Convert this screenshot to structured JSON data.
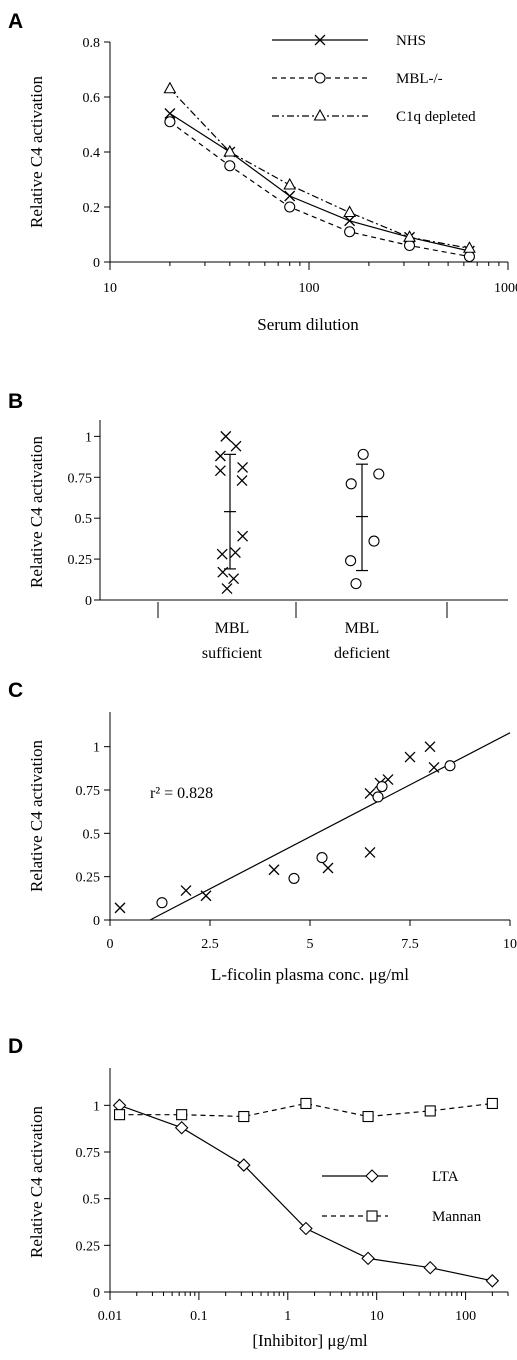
{
  "colors": {
    "ink": "#000000",
    "background": "#ffffff"
  },
  "chart_data": [
    {
      "panel": "A",
      "type": "line",
      "xscale": "log",
      "xlim": [
        10,
        1000
      ],
      "ylim": [
        0,
        0.8
      ],
      "xticks": [
        10,
        100,
        1000
      ],
      "yticks": [
        0,
        0.2,
        0.4,
        0.6,
        0.8
      ],
      "xtick_labels": [
        "10",
        "100",
        "1000"
      ],
      "ytick_labels": [
        "0",
        "0.2",
        "0.4",
        "0.6",
        "0.8"
      ],
      "xlabel": "Serum dilution",
      "ylabel": "Relative C4 activation",
      "legend_position": "top-right",
      "series": [
        {
          "name": "NHS",
          "line": "solid",
          "marker": "x",
          "x": [
            20,
            40,
            80,
            160,
            320,
            640
          ],
          "y": [
            0.54,
            0.4,
            0.24,
            0.15,
            0.09,
            0.04
          ]
        },
        {
          "name": "MBL-/-",
          "line": "dashed",
          "marker": "circle",
          "x": [
            20,
            40,
            80,
            160,
            320,
            640
          ],
          "y": [
            0.51,
            0.35,
            0.2,
            0.11,
            0.06,
            0.02
          ]
        },
        {
          "name": "C1q depleted",
          "line": "dashdot",
          "marker": "triangle",
          "x": [
            20,
            40,
            80,
            160,
            320,
            640
          ],
          "y": [
            0.63,
            0.4,
            0.28,
            0.18,
            0.09,
            0.05
          ]
        }
      ]
    },
    {
      "panel": "B",
      "type": "scatter",
      "ylim": [
        0,
        1.1
      ],
      "yticks": [
        0,
        0.25,
        0.5,
        0.75,
        1
      ],
      "ytick_labels": [
        "0",
        "0.25",
        "0.5",
        "0.75",
        "1"
      ],
      "ylabel": "Relative C4 activation",
      "groups": [
        {
          "label_lines": [
            "MBL",
            "sufficient"
          ],
          "marker": "x",
          "points": [
            {
              "dx": -0.35,
              "y": 1.0
            },
            {
              "dx": 0.5,
              "y": 0.94
            },
            {
              "dx": -0.8,
              "y": 0.88
            },
            {
              "dx": 1.05,
              "y": 0.81
            },
            {
              "dx": -0.8,
              "y": 0.79
            },
            {
              "dx": 1.0,
              "y": 0.73
            },
            {
              "dx": 1.05,
              "y": 0.39
            },
            {
              "dx": 0.45,
              "y": 0.29
            },
            {
              "dx": -0.65,
              "y": 0.28
            },
            {
              "dx": -0.6,
              "y": 0.17
            },
            {
              "dx": 0.3,
              "y": 0.13
            },
            {
              "dx": -0.25,
              "y": 0.07
            }
          ],
          "mean": 0.54,
          "sd_low": 0.19,
          "sd_high": 0.89
        },
        {
          "label_lines": [
            "MBL",
            "deficient"
          ],
          "marker": "circle",
          "points": [
            {
              "dx": 0.1,
              "y": 0.89
            },
            {
              "dx": 1.4,
              "y": 0.77
            },
            {
              "dx": -0.9,
              "y": 0.71
            },
            {
              "dx": 1.0,
              "y": 0.36
            },
            {
              "dx": -0.95,
              "y": 0.24
            },
            {
              "dx": -0.5,
              "y": 0.1
            }
          ],
          "mean": 0.51,
          "sd_low": 0.18,
          "sd_high": 0.83
        }
      ]
    },
    {
      "panel": "C",
      "type": "scatter",
      "xlim": [
        0,
        10
      ],
      "ylim": [
        0,
        1.2
      ],
      "xticks": [
        0,
        2.5,
        5,
        7.5,
        10
      ],
      "yticks": [
        0,
        0.25,
        0.5,
        0.75,
        1
      ],
      "xtick_labels": [
        "0",
        "2.5",
        "5",
        "7.5",
        "10"
      ],
      "ytick_labels": [
        "0",
        "0.25",
        "0.5",
        "0.75",
        "1"
      ],
      "xlabel": "L-ficolin plasma conc. μg/ml",
      "ylabel": "Relative C4 activation",
      "annotation": "r² = 0.828",
      "fit": {
        "x": [
          1.0,
          10.0
        ],
        "y": [
          0.0,
          1.08
        ]
      },
      "series": [
        {
          "marker": "x",
          "x": [
            0.25,
            1.9,
            2.4,
            4.1,
            5.45,
            6.5,
            6.5,
            6.75,
            6.95,
            7.5,
            8.0,
            8.1
          ],
          "y": [
            0.07,
            0.17,
            0.14,
            0.29,
            0.3,
            0.39,
            0.73,
            0.79,
            0.81,
            0.94,
            1.0,
            0.88
          ]
        },
        {
          "marker": "circle",
          "x": [
            1.3,
            4.6,
            5.3,
            6.7,
            6.8,
            8.5
          ],
          "y": [
            0.1,
            0.24,
            0.36,
            0.71,
            0.77,
            0.89
          ]
        }
      ]
    },
    {
      "panel": "D",
      "type": "line",
      "xscale": "log",
      "xlim": [
        0.01,
        300
      ],
      "ylim": [
        0,
        1.2
      ],
      "xticks": [
        0.01,
        0.1,
        1,
        10,
        100
      ],
      "yticks": [
        0,
        0.25,
        0.5,
        0.75,
        1
      ],
      "xtick_labels": [
        "0.01",
        "0.1",
        "1",
        "10",
        "100"
      ],
      "ytick_labels": [
        "0",
        "0.25",
        "0.5",
        "0.75",
        "1"
      ],
      "xlabel": "[Inhibitor] μg/ml",
      "ylabel": "Relative C4 activation",
      "legend_position": "right",
      "series": [
        {
          "name": "LTA",
          "line": "solid",
          "marker": "diamond",
          "x": [
            0.0128,
            0.064,
            0.32,
            1.6,
            8,
            40,
            200
          ],
          "y": [
            1.0,
            0.88,
            0.68,
            0.34,
            0.18,
            0.13,
            0.06
          ]
        },
        {
          "name": "Mannan",
          "line": "dashed",
          "marker": "square",
          "x": [
            0.0128,
            0.064,
            0.32,
            1.6,
            8,
            40,
            200
          ],
          "y": [
            0.95,
            0.95,
            0.94,
            1.01,
            0.94,
            0.97,
            1.01
          ]
        }
      ]
    }
  ]
}
